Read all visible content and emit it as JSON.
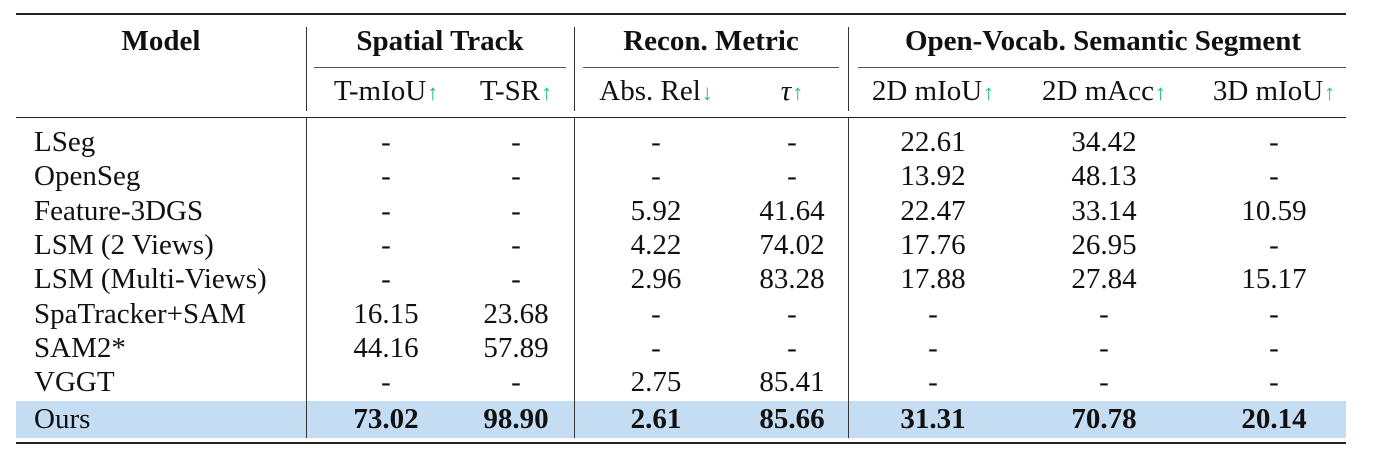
{
  "headers": {
    "model": "Model",
    "groups": [
      "Spatial Track",
      "Recon. Metric",
      "Open-Vocab. Semantic Segment"
    ],
    "subcols": [
      {
        "label": "T-mIoU",
        "arrow": "↑"
      },
      {
        "label": "T-SR",
        "arrow": "↑"
      },
      {
        "label": "Abs. Rel",
        "arrow": "↓"
      },
      {
        "label": "τ",
        "arrow": "↑"
      },
      {
        "label": "2D mIoU",
        "arrow": "↑"
      },
      {
        "label": "2D mAcc",
        "arrow": "↑"
      },
      {
        "label": "3D mIoU",
        "arrow": "↑"
      }
    ]
  },
  "rows": [
    {
      "model": "LSeg",
      "values": [
        "-",
        "-",
        "-",
        "-",
        "22.61",
        "34.42",
        "-"
      ]
    },
    {
      "model": "OpenSeg",
      "values": [
        "-",
        "-",
        "-",
        "-",
        "13.92",
        "48.13",
        "-"
      ]
    },
    {
      "model": "Feature-3DGS",
      "values": [
        "-",
        "-",
        "5.92",
        "41.64",
        "22.47",
        "33.14",
        "10.59"
      ]
    },
    {
      "model": "LSM (2 Views)",
      "values": [
        "-",
        "-",
        "4.22",
        "74.02",
        "17.76",
        "26.95",
        "-"
      ]
    },
    {
      "model": "LSM (Multi-Views)",
      "values": [
        "-",
        "-",
        "2.96",
        "83.28",
        "17.88",
        "27.84",
        "15.17"
      ]
    },
    {
      "model": "SpaTracker+SAM",
      "values": [
        "16.15",
        "23.68",
        "-",
        "-",
        "-",
        "-",
        "-"
      ]
    },
    {
      "model": "SAM2*",
      "values": [
        "44.16",
        "57.89",
        "-",
        "-",
        "-",
        "-",
        "-"
      ]
    },
    {
      "model": "VGGT",
      "values": [
        "-",
        "-",
        "2.75",
        "85.41",
        "-",
        "-",
        "-"
      ]
    },
    {
      "model": "Ours",
      "values": [
        "73.02",
        "98.90",
        "2.61",
        "85.66",
        "31.31",
        "70.78",
        "20.14"
      ],
      "highlight": true
    }
  ],
  "colors": {
    "highlight_row": "#c5ddf3",
    "arrow": "#22c17a"
  }
}
